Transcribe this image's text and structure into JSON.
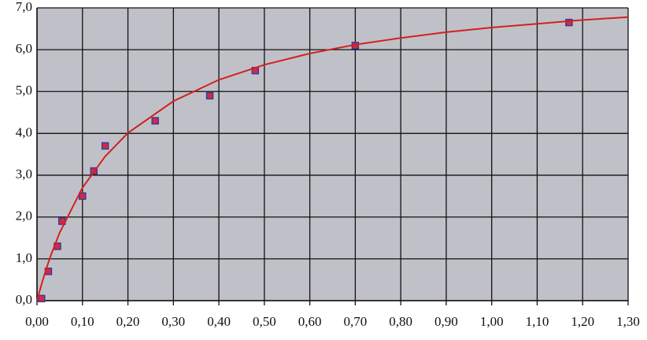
{
  "chart_data": {
    "type": "scatter",
    "series": [
      {
        "style": "markers",
        "color": "#d42a3a",
        "edge_color": "#3a3aa0",
        "x": [
          0.01,
          0.025,
          0.045,
          0.055,
          0.1,
          0.125,
          0.15,
          0.26,
          0.38,
          0.48,
          0.7,
          1.17
        ],
        "values": [
          0.05,
          0.7,
          1.3,
          1.9,
          2.5,
          3.1,
          3.7,
          4.3,
          4.9,
          5.5,
          6.1,
          6.65
        ]
      },
      {
        "style": "line",
        "color": "#d42020",
        "x": [
          0,
          0.01,
          0.02,
          0.03,
          0.05,
          0.1,
          0.15,
          0.2,
          0.3,
          0.4,
          0.5,
          0.6,
          0.7,
          0.8,
          0.9,
          1.0,
          1.1,
          1.2,
          1.3
        ],
        "values": [
          0,
          0.39,
          0.75,
          1.07,
          1.63,
          2.7,
          3.45,
          4.01,
          4.77,
          5.28,
          5.64,
          5.91,
          6.12,
          6.28,
          6.42,
          6.53,
          6.62,
          6.71,
          6.78
        ]
      }
    ],
    "xlim": [
      0,
      1.3
    ],
    "xticks": [
      {
        "value": 0,
        "label": "0,00"
      },
      {
        "value": 0.1,
        "label": "0,10"
      },
      {
        "value": 0.2,
        "label": "0,20"
      },
      {
        "value": 0.3,
        "label": "0,30"
      },
      {
        "value": 0.4,
        "label": "0,40"
      },
      {
        "value": 0.5,
        "label": "0,50"
      },
      {
        "value": 0.6,
        "label": "0,60"
      },
      {
        "value": 0.7,
        "label": "0,70"
      },
      {
        "value": 0.8,
        "label": "0,80"
      },
      {
        "value": 0.9,
        "label": "0,90"
      },
      {
        "value": 1.0,
        "label": "1,00"
      },
      {
        "value": 1.1,
        "label": "1,10"
      },
      {
        "value": 1.2,
        "label": "1,20"
      },
      {
        "value": 1.3,
        "label": "1,30"
      }
    ],
    "ylim": [
      0,
      7
    ],
    "yticks": [
      {
        "value": 0,
        "label": "0,0"
      },
      {
        "value": 1,
        "label": "1,0"
      },
      {
        "value": 2,
        "label": "2,0"
      },
      {
        "value": 3,
        "label": "3,0"
      },
      {
        "value": 4,
        "label": "4,0"
      },
      {
        "value": 5,
        "label": "5,0"
      },
      {
        "value": 6,
        "label": "6,0"
      },
      {
        "value": 7,
        "label": "7,0"
      }
    ],
    "grid": true,
    "plot_background": "#c0c1c8"
  }
}
